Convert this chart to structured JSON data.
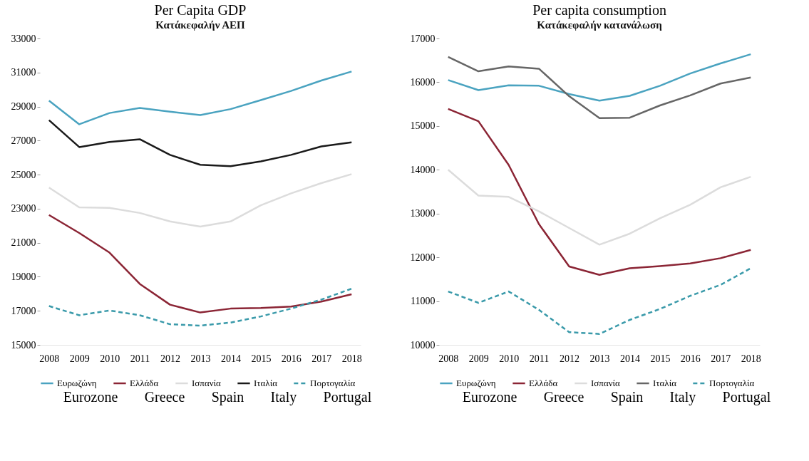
{
  "chart_data": [
    {
      "type": "line",
      "title": "Per Capita GDP",
      "subtitle": "Κατάκεφαλήν ΑΕΠ",
      "categories": [
        "2008",
        "2009",
        "2010",
        "2011",
        "2012",
        "2013",
        "2014",
        "2015",
        "2016",
        "2017",
        "2018"
      ],
      "ylim": [
        15000,
        33000
      ],
      "yticks": [
        15000,
        17000,
        19000,
        21000,
        23000,
        25000,
        27000,
        29000,
        31000,
        33000
      ],
      "grid": false,
      "legend": "bottom",
      "annotations": [
        "Eurozone",
        "Greece",
        "Spain",
        "Italy",
        "Portugal"
      ],
      "series": [
        {
          "name": "Ευρωζώνη",
          "color": "#4aa3c0",
          "line_style": "solid",
          "values": [
            29350,
            27960,
            28620,
            28920,
            28700,
            28500,
            28850,
            29380,
            29920,
            30530,
            31060
          ]
        },
        {
          "name": "Ελλάδα",
          "color": "#8b2535",
          "line_style": "solid",
          "values": [
            22630,
            21570,
            20420,
            18580,
            17360,
            16900,
            17130,
            17170,
            17250,
            17540,
            17970
          ]
        },
        {
          "name": "Ισπανία",
          "color": "#dcdcdc",
          "line_style": "solid",
          "values": [
            24240,
            23080,
            23050,
            22750,
            22250,
            21950,
            22250,
            23200,
            23900,
            24500,
            25030
          ]
        },
        {
          "name": "Ιταλία",
          "color": "#1a1a1a",
          "line_style": "solid",
          "values": [
            28200,
            26620,
            26920,
            27080,
            26160,
            25580,
            25500,
            25780,
            26160,
            26660,
            26900
          ]
        },
        {
          "name": "Πορτογαλία",
          "color": "#3a9aaa",
          "line_style": "dashed",
          "values": [
            17280,
            16740,
            17020,
            16740,
            16210,
            16130,
            16310,
            16670,
            17130,
            17660,
            18300
          ]
        }
      ]
    },
    {
      "type": "line",
      "title": "Per capita consumption",
      "subtitle": "Κατάκεφαλήν κατανάλωση",
      "categories": [
        "2008",
        "2009",
        "2010",
        "2011",
        "2012",
        "2013",
        "2014",
        "2015",
        "2016",
        "2017",
        "2018"
      ],
      "ylim": [
        10000,
        17000
      ],
      "yticks": [
        10000,
        11000,
        12000,
        13000,
        14000,
        15000,
        16000,
        17000
      ],
      "grid": false,
      "legend": "bottom",
      "annotations": [
        "Eurozone",
        "Greece",
        "Spain",
        "Italy",
        "Portugal"
      ],
      "series": [
        {
          "name": "Ευρωζώνη",
          "color": "#4aa3c0",
          "line_style": "solid",
          "values": [
            16050,
            15820,
            15930,
            15920,
            15730,
            15580,
            15690,
            15920,
            16200,
            16430,
            16640
          ]
        },
        {
          "name": "Ελλάδα",
          "color": "#8b2535",
          "line_style": "solid",
          "values": [
            15390,
            15110,
            14110,
            12760,
            11790,
            11600,
            11750,
            11800,
            11860,
            11980,
            12170
          ]
        },
        {
          "name": "Ισπανία",
          "color": "#dcdcdc",
          "line_style": "solid",
          "values": [
            14000,
            13410,
            13380,
            13050,
            12670,
            12290,
            12540,
            12890,
            13200,
            13600,
            13840
          ]
        },
        {
          "name": "Ιταλία",
          "color": "#666666",
          "line_style": "solid",
          "values": [
            16580,
            16250,
            16360,
            16310,
            15680,
            15180,
            15190,
            15470,
            15700,
            15970,
            16110
          ]
        },
        {
          "name": "Πορτογαλία",
          "color": "#3a9aaa",
          "line_style": "dashed",
          "values": [
            11220,
            10960,
            11220,
            10800,
            10290,
            10250,
            10570,
            10820,
            11120,
            11370,
            11750
          ]
        }
      ]
    }
  ]
}
